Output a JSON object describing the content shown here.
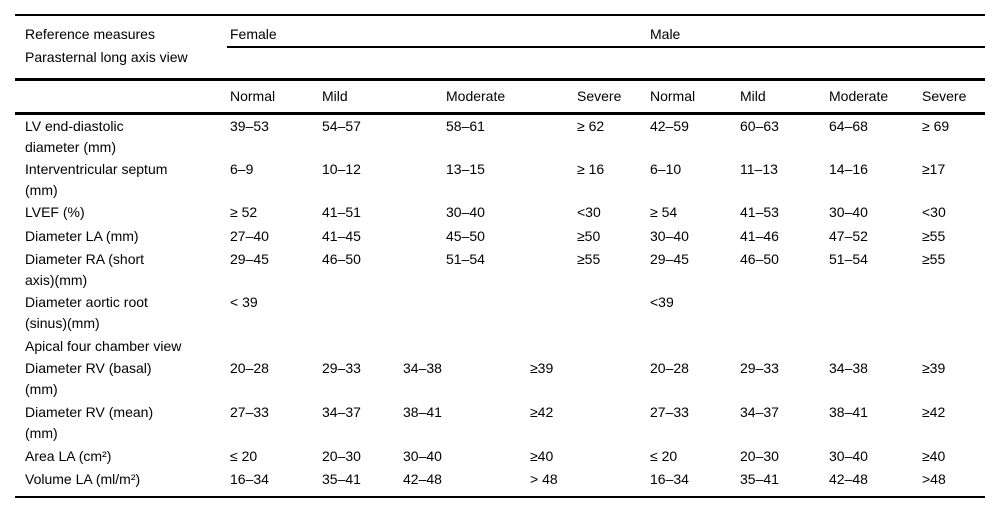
{
  "table": {
    "header": {
      "title": "Reference measures",
      "group_female": "Female",
      "group_male": "Male"
    },
    "columns": [
      "Normal",
      "Mild",
      "Moderate",
      "Severe",
      "Normal",
      "Mild",
      "Moderate",
      "Severe"
    ],
    "sections": [
      {
        "label": "Parasternal long axis view",
        "rows": [
          {
            "label_lines": [
              "LV end-diastolic",
              "diameter (mm)"
            ],
            "values": [
              "39–53",
              "54–57",
              "58–61",
              "≥ 62",
              "42–59",
              "60–63",
              "64–68",
              "≥ 69"
            ]
          },
          {
            "label_lines": [
              "Interventricular septum",
              "(mm)"
            ],
            "values": [
              "6–9",
              "10–12",
              "13–15",
              "≥ 16",
              "6–10",
              "11–13",
              "14–16",
              "≥17"
            ]
          },
          {
            "label_lines": [
              "LVEF (%)"
            ],
            "values": [
              "≥ 52",
              "41–51",
              "30–40",
              "<30",
              "≥ 54",
              "41–53",
              "30–40",
              "<30"
            ]
          },
          {
            "label_lines": [
              "Diameter LA (mm)"
            ],
            "values": [
              "27–40",
              "41–45",
              "45–50",
              "≥50",
              "30–40",
              "41–46",
              "47–52",
              "≥55"
            ]
          },
          {
            "label_lines": [
              "Diameter RA (short",
              "axis)(mm)"
            ],
            "values": [
              "29–45",
              "46–50",
              "51–54",
              "≥55",
              "29–45",
              "46–50",
              "51–54",
              "≥55"
            ]
          },
          {
            "label_lines": [
              "Diameter aortic root",
              "(sinus)(mm)"
            ],
            "values": [
              "< 39",
              "",
              "",
              "",
              "<39",
              "",
              "",
              ""
            ]
          }
        ]
      },
      {
        "label": "Apical four chamber view",
        "rows": [
          {
            "label_lines": [
              "Diameter RV (basal)",
              "(mm)"
            ],
            "values": [
              "20–28",
              "29–33",
              "34–38",
              "≥39",
              "20–28",
              "29–33",
              "34–38",
              "≥39"
            ]
          },
          {
            "label_lines": [
              "Diameter RV (mean)",
              "(mm)"
            ],
            "values": [
              "27–33",
              "34–37",
              "38–41",
              "≥42",
              "27–33",
              "34–37",
              "38–41",
              "≥42"
            ]
          },
          {
            "label_lines": [
              "Area LA (cm²)"
            ],
            "values": [
              "≤ 20",
              "20–30",
              "30–40",
              "≥40",
              "≤ 20",
              "20–30",
              "30–40",
              "≥40"
            ]
          },
          {
            "label_lines": [
              "Volume LA (ml/m²)"
            ],
            "values": [
              "16–34",
              "35–41",
              "42–48",
              "> 48",
              "16–34",
              "35–41",
              "42–48",
              ">48"
            ]
          }
        ]
      }
    ]
  }
}
